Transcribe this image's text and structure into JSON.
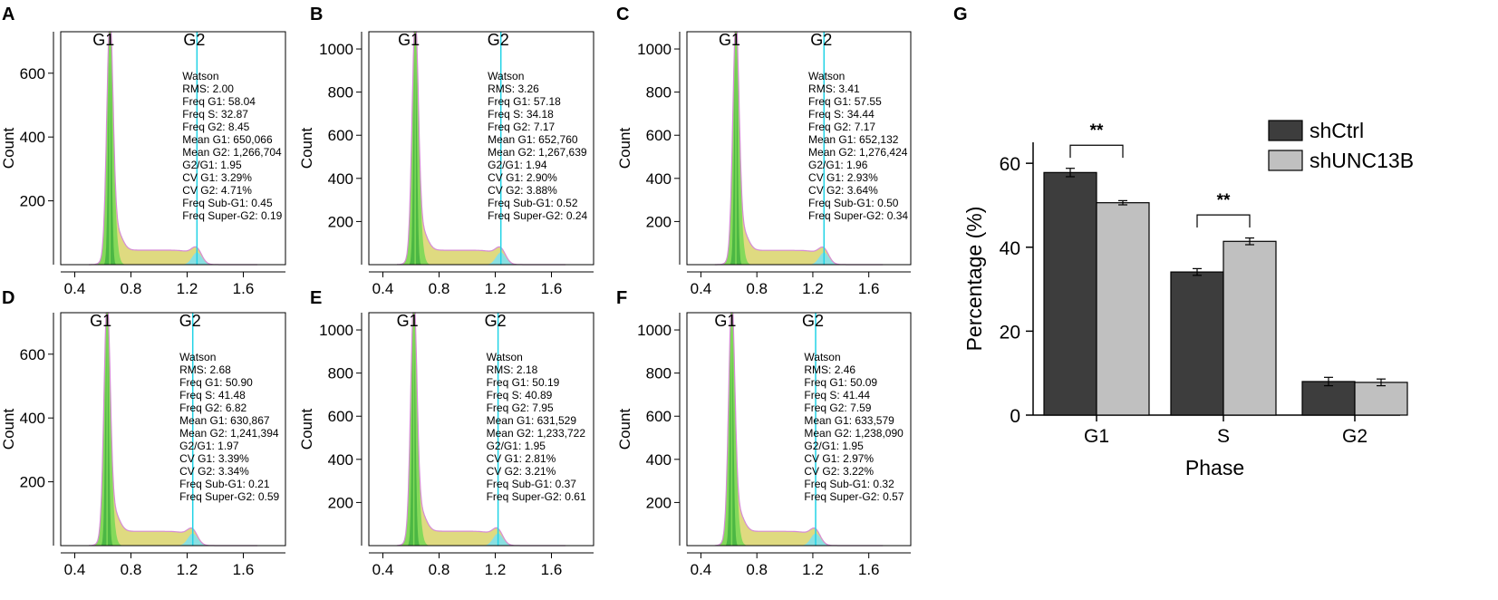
{
  "chart_data": [
    {
      "type": "area",
      "panel": "A",
      "ylabel": "Count",
      "xlabel": "",
      "xlim": [
        0.3,
        1.9
      ],
      "ylim": [
        0,
        730
      ],
      "xticks": [
        0.4,
        0.8,
        1.2,
        1.6
      ],
      "yticks": [
        200,
        400,
        600
      ],
      "xtick_labels": [
        "0.4",
        "0.8",
        "1.2",
        "1.6"
      ],
      "ytick_labels": [
        "200",
        "400",
        "600"
      ],
      "peak_labels": [
        "G1",
        "G2"
      ],
      "g1_position": 0.65,
      "g2_position": 1.27,
      "g1_peak_count": 700,
      "stats": [
        "Watson",
        "RMS: 2.00",
        "Freq G1: 58.04",
        "Freq S: 32.87",
        "Freq G2: 8.45",
        "Mean G1: 650,066",
        "Mean G2: 1,266,704",
        "G2/G1: 1.95",
        "CV G1: 3.29%",
        "CV G2: 4.71%",
        "Freq Sub-G1: 0.45",
        "Freq Super-G2: 0.19"
      ]
    },
    {
      "type": "area",
      "panel": "B",
      "ylabel": "Count",
      "xlabel": "",
      "xlim": [
        0.3,
        1.9
      ],
      "ylim": [
        0,
        1080
      ],
      "xticks": [
        0.4,
        0.8,
        1.2,
        1.6
      ],
      "yticks": [
        200,
        400,
        600,
        800,
        1000
      ],
      "xtick_labels": [
        "0.4",
        "0.8",
        "1.2",
        "1.6"
      ],
      "ytick_labels": [
        "200",
        "400",
        "600",
        "800",
        "1000"
      ],
      "peak_labels": [
        "G1",
        "G2"
      ],
      "g1_position": 0.63,
      "g2_position": 1.24,
      "g1_peak_count": 1030,
      "stats": [
        "Watson",
        "RMS: 3.26",
        "Freq G1: 57.18",
        "Freq S: 34.18",
        "Freq G2: 7.17",
        "Mean G1: 652,760",
        "Mean G2: 1,267,639",
        "G2/G1: 1.94",
        "CV G1: 2.90%",
        "CV G2: 3.88%",
        "Freq Sub-G1: 0.52",
        "Freq Super-G2: 0.24"
      ]
    },
    {
      "type": "area",
      "panel": "C",
      "ylabel": "Count",
      "xlabel": "",
      "xlim": [
        0.3,
        1.9
      ],
      "ylim": [
        0,
        1080
      ],
      "xticks": [
        0.4,
        0.8,
        1.2,
        1.6
      ],
      "yticks": [
        200,
        400,
        600,
        800,
        1000
      ],
      "xtick_labels": [
        "0.4",
        "0.8",
        "1.2",
        "1.6"
      ],
      "ytick_labels": [
        "200",
        "400",
        "600",
        "800",
        "1000"
      ],
      "peak_labels": [
        "G1",
        "G2"
      ],
      "g1_position": 0.65,
      "g2_position": 1.28,
      "g1_peak_count": 1020,
      "stats": [
        "Watson",
        "RMS: 3.41",
        "Freq G1: 57.55",
        "Freq S: 34.44",
        "Freq G2: 7.17",
        "Mean G1: 652,132",
        "Mean G2: 1,276,424",
        "G2/G1: 1.96",
        "CV G1: 2.93%",
        "CV G2: 3.64%",
        "Freq Sub-G1: 0.50",
        "Freq Super-G2: 0.34"
      ]
    },
    {
      "type": "area",
      "panel": "D",
      "ylabel": "Count",
      "xlabel": "",
      "xlim": [
        0.3,
        1.9
      ],
      "ylim": [
        0,
        730
      ],
      "xticks": [
        0.4,
        0.8,
        1.2,
        1.6
      ],
      "yticks": [
        200,
        400,
        600
      ],
      "xtick_labels": [
        "0.4",
        "0.8",
        "1.2",
        "1.6"
      ],
      "ytick_labels": [
        "200",
        "400",
        "600"
      ],
      "peak_labels": [
        "G1",
        "G2"
      ],
      "g1_position": 0.63,
      "g2_position": 1.24,
      "g1_peak_count": 690,
      "stats": [
        "Watson",
        "RMS: 2.68",
        "Freq G1: 50.90",
        "Freq S: 41.48",
        "Freq G2: 6.82",
        "Mean G1: 630,867",
        "Mean G2: 1,241,394",
        "G2/G1: 1.97",
        "CV G1: 3.39%",
        "CV G2: 3.34%",
        "Freq Sub-G1: 0.21",
        "Freq Super-G2: 0.59"
      ]
    },
    {
      "type": "area",
      "panel": "E",
      "ylabel": "Count",
      "xlabel": "",
      "xlim": [
        0.3,
        1.9
      ],
      "ylim": [
        0,
        1080
      ],
      "xticks": [
        0.4,
        0.8,
        1.2,
        1.6
      ],
      "yticks": [
        200,
        400,
        600,
        800,
        1000
      ],
      "xtick_labels": [
        "0.4",
        "0.8",
        "1.2",
        "1.6"
      ],
      "ytick_labels": [
        "200",
        "400",
        "600",
        "800",
        "1000"
      ],
      "peak_labels": [
        "G1",
        "G2"
      ],
      "g1_position": 0.62,
      "g2_position": 1.22,
      "g1_peak_count": 1030,
      "stats": [
        "Watson",
        "RMS: 2.18",
        "Freq G1: 50.19",
        "Freq S: 40.89",
        "Freq G2: 7.95",
        "Mean G1: 631,529",
        "Mean G2: 1,233,722",
        "G2/G1: 1.95",
        "CV G1: 2.81%",
        "CV G2: 3.21%",
        "Freq Sub-G1: 0.37",
        "Freq Super-G2: 0.61"
      ]
    },
    {
      "type": "area",
      "panel": "F",
      "ylabel": "Count",
      "xlabel": "",
      "xlim": [
        0.3,
        1.9
      ],
      "ylim": [
        0,
        1080
      ],
      "xticks": [
        0.4,
        0.8,
        1.2,
        1.6
      ],
      "yticks": [
        200,
        400,
        600,
        800,
        1000
      ],
      "xtick_labels": [
        "0.4",
        "0.8",
        "1.2",
        "1.6"
      ],
      "ytick_labels": [
        "200",
        "400",
        "600",
        "800",
        "1000"
      ],
      "peak_labels": [
        "G1",
        "G2"
      ],
      "g1_position": 0.62,
      "g2_position": 1.22,
      "g1_peak_count": 1020,
      "stats": [
        "Watson",
        "RMS: 2.46",
        "Freq G1: 50.09",
        "Freq S: 41.44",
        "Freq G2: 7.59",
        "Mean G1: 633,579",
        "Mean G2: 1,238,090",
        "G2/G1: 1.95",
        "CV G1: 2.97%",
        "CV G2: 3.22%",
        "Freq Sub-G1: 0.32",
        "Freq Super-G2: 0.57"
      ]
    },
    {
      "type": "bar",
      "panel": "G",
      "categories": [
        "G1",
        "S",
        "G2"
      ],
      "series": [
        {
          "name": "shCtrl",
          "values": [
            57.8,
            34.1,
            8.0
          ],
          "errors": [
            1.0,
            0.8,
            1.0
          ]
        },
        {
          "name": "shUNC13B",
          "values": [
            50.6,
            41.4,
            7.8
          ],
          "errors": [
            0.5,
            0.8,
            0.8
          ]
        }
      ],
      "xlabel": "Phase",
      "ylabel": "Percentage (%)",
      "ylim": [
        0,
        65
      ],
      "yticks": [
        0,
        20,
        40,
        60
      ],
      "ytick_labels": [
        "0",
        "20",
        "40",
        "60"
      ],
      "legend_position": "top-right",
      "significance": [
        {
          "category": "G1",
          "label": "**"
        },
        {
          "category": "S",
          "label": "**"
        }
      ]
    }
  ],
  "colors": {
    "g1_fill": "#7ed957",
    "g1_dark": "#3fae3f",
    "s_fill": "#d9d36a",
    "g2_fill": "#7fe0ec",
    "marker_line": "#22d3e6",
    "outline": "#d58bd6",
    "bar_ctrl": "#3d3d3d",
    "bar_unc": "#c0c0c0"
  }
}
